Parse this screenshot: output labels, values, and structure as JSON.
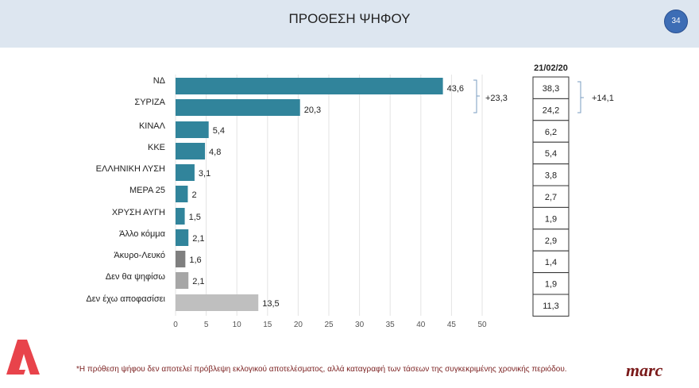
{
  "header": {
    "title": "ΠΡΟΘΕΣΗ ΨΗΦΟΥ",
    "page_number": "34"
  },
  "chart_data": {
    "type": "bar",
    "orientation": "horizontal",
    "categories": [
      "ΝΔ",
      "ΣΥΡΙΖΑ",
      "ΚΙΝΑΛ",
      "ΚΚΕ",
      "ΕΛΛΗΝΙΚΗ ΛΥΣΗ",
      "ΜΕΡΑ 25",
      "ΧΡΥΣΗ ΑΥΓΗ",
      "Άλλο κόμμα",
      "Άκυρο-Λευκό",
      "Δεν θα ψηφίσω",
      "Δεν έχω αποφασίσει"
    ],
    "values": [
      43.6,
      20.3,
      5.4,
      4.8,
      3.1,
      2,
      1.5,
      2.1,
      1.6,
      2.1,
      13.5
    ],
    "value_labels": [
      "43,6",
      "20,3",
      "5,4",
      "4,8",
      "3,1",
      "2",
      "1,5",
      "2,1",
      "1,6",
      "2,1",
      "13,5"
    ],
    "colors": [
      "#31849b",
      "#31849b",
      "#31849b",
      "#31849b",
      "#31849b",
      "#31849b",
      "#31849b",
      "#31849b",
      "#7f7f7f",
      "#a6a6a6",
      "#bfbfbf"
    ],
    "xlim": [
      0,
      50
    ],
    "xticks": [
      "0",
      "5",
      "10",
      "15",
      "20",
      "25",
      "30",
      "35",
      "40",
      "45",
      "50"
    ],
    "grid": true,
    "difference_label": "+23,3",
    "comparison": {
      "header": "21/02/20",
      "values": [
        "38,3",
        "24,2",
        "6,2",
        "5,4",
        "3,8",
        "2,7",
        "1,9",
        "2,9",
        "1,4",
        "1,9",
        "11,3"
      ],
      "difference_label": "+14,1"
    }
  },
  "footer": {
    "note": "*Η πρόθεση ψήφου δεν αποτελεί πρόβλεψη εκλογικού αποτελέσματος, αλλά καταγραφή των τάσεων της συγκεκριμένης χρονικής περιόδου.",
    "brand": "marc",
    "logo": "Alpha"
  }
}
